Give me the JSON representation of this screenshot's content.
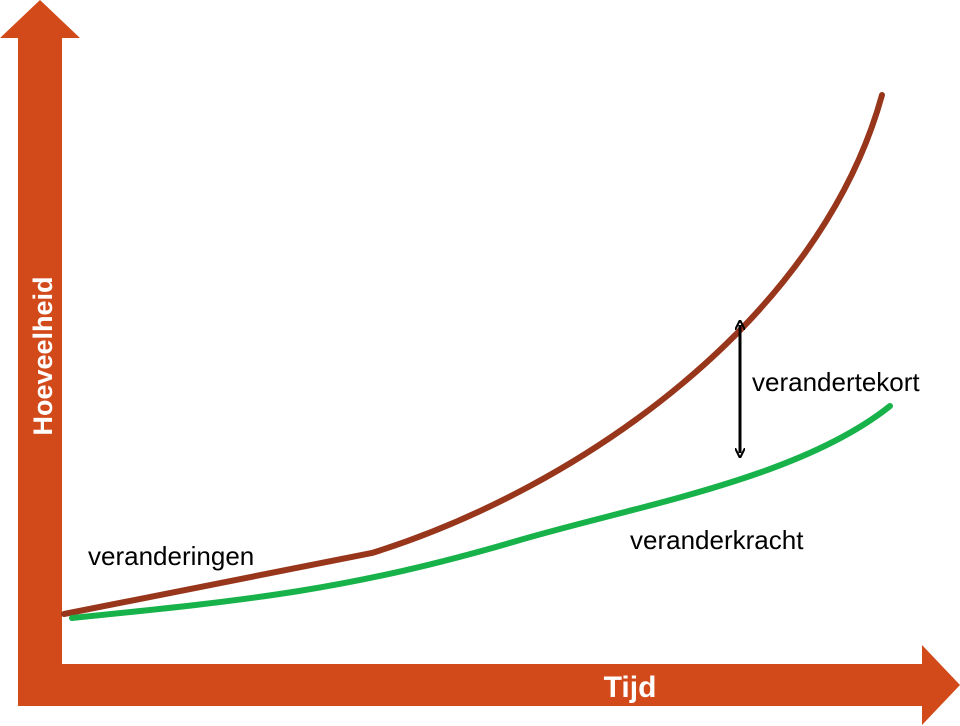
{
  "diagram": {
    "y_axis_label": "Hoeveelheid",
    "x_axis_label": "Tijd",
    "series": [
      {
        "name": "veranderingen",
        "color": "#98361C"
      },
      {
        "name": "veranderkracht",
        "color": "#17B34A"
      }
    ],
    "gap_label": "verandertekort",
    "axis_color": "#D24A1A",
    "gap_arrow_color": "#000000"
  }
}
